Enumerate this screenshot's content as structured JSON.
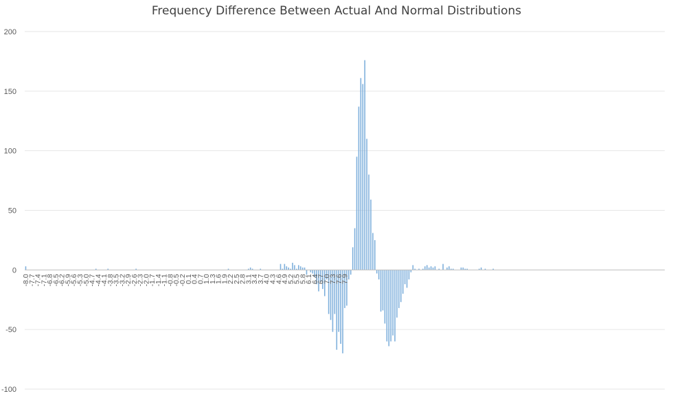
{
  "chart_data": {
    "type": "bar",
    "title": "Frequency Difference Between Actual And Normal Distributions",
    "xlabel": "",
    "ylabel": "",
    "ylim": [
      -100,
      200
    ],
    "y_ticks": [
      200,
      150,
      100,
      50,
      0,
      -50,
      -100
    ],
    "x_tick_labels": [
      "-8.0",
      "-7.7",
      "-7.4",
      "-7.1",
      "-6.8",
      "-6.5",
      "-6.2",
      "-5.9",
      "-5.6",
      "-5.3",
      "-5.0",
      "-4.7",
      "-4.4",
      "-4.1",
      "-3.8",
      "-3.5",
      "-3.2",
      "-2.9",
      "-2.6",
      "-2.3",
      "-2.0",
      "-1.7",
      "-1.4",
      "-1.1",
      "-0.8",
      "-0.5",
      "-0.2",
      "0.1",
      "0.4",
      "0.7",
      "1.0",
      "1.3",
      "1.6",
      "1.9",
      "2.2",
      "2.5",
      "2.8",
      "3.1",
      "3.4",
      "3.7",
      "4.0",
      "4.3",
      "4.6",
      "4.9",
      "5.2",
      "5.5",
      "5.8",
      "6.1",
      "6.4",
      "6.7",
      "7.0",
      "7.3",
      "7.6",
      "7.9"
    ],
    "bar_color": "#7fb0dc",
    "grid_color": "#e6e6e6",
    "axis_color": "#bfbfbf",
    "series": [
      {
        "name": "Frequency Difference",
        "x_start": -8.0,
        "x_step": 0.1,
        "values": [
          3,
          0,
          0,
          0,
          0,
          0,
          0,
          0,
          0,
          0,
          0,
          0,
          0,
          0,
          0,
          0,
          0,
          0,
          0,
          0,
          0,
          0,
          0,
          0,
          0,
          0,
          0,
          0,
          0,
          0,
          0,
          0,
          0,
          0,
          0,
          1,
          0,
          0,
          0,
          0,
          0,
          1,
          0,
          0,
          0,
          0,
          0,
          0,
          0,
          0,
          0,
          0,
          0,
          0,
          0,
          1,
          0,
          0,
          0,
          0,
          0,
          0,
          0,
          0,
          0,
          0,
          0,
          0,
          0,
          0,
          0,
          0,
          0,
          0,
          0,
          0,
          0,
          0,
          0,
          0,
          0,
          0,
          0,
          0,
          0,
          0,
          0,
          0,
          0,
          0,
          0,
          0,
          0,
          0,
          0,
          0,
          0,
          0,
          0,
          0,
          0,
          1,
          0,
          0,
          0,
          0,
          0,
          0,
          0,
          0,
          0,
          1,
          2,
          1,
          0,
          0,
          0,
          1,
          0,
          0,
          0,
          0,
          0,
          0,
          0,
          0,
          0,
          5,
          1,
          5,
          3,
          2,
          1,
          6,
          4,
          1,
          4,
          3,
          2,
          2,
          -4,
          0,
          -2,
          -3,
          -6,
          -12,
          -18,
          -10,
          -16,
          -22,
          -8,
          -37,
          -42,
          -52,
          -37,
          -67,
          -52,
          -62,
          -70,
          -32,
          -30,
          -8,
          -4,
          19,
          35,
          95,
          137,
          161,
          156,
          176,
          110,
          80,
          59,
          31,
          25,
          -3,
          -8,
          -35,
          -34,
          -45,
          -60,
          -64,
          -60,
          -55,
          -60,
          -40,
          -32,
          -27,
          -20,
          -12,
          -15,
          -8,
          -2,
          4,
          1,
          0,
          1,
          0,
          1,
          3,
          4,
          2,
          3,
          2,
          3,
          0,
          1,
          0,
          5,
          0,
          2,
          3,
          1,
          1,
          0,
          0,
          0,
          2,
          2,
          1,
          1,
          0,
          0,
          0,
          0,
          0,
          1,
          2,
          0,
          1,
          0,
          0,
          0,
          1,
          0,
          0,
          0,
          0,
          0,
          0,
          0,
          0,
          0,
          0,
          0,
          0,
          0,
          0,
          0,
          0,
          0,
          0,
          0,
          0,
          0,
          0,
          0,
          0,
          0,
          0,
          0,
          0,
          0,
          0,
          0,
          0,
          0,
          0,
          0,
          0,
          0,
          0,
          0,
          0,
          0,
          0,
          0,
          0,
          0,
          0,
          0,
          0,
          0,
          0,
          0,
          0,
          0,
          0,
          0,
          0,
          0,
          0,
          0,
          0,
          0,
          0,
          0,
          0,
          0,
          0,
          0,
          0,
          0,
          0,
          0,
          0,
          0,
          0,
          0,
          0,
          0,
          0,
          0,
          0,
          0,
          0,
          0,
          0,
          0
        ]
      }
    ]
  }
}
